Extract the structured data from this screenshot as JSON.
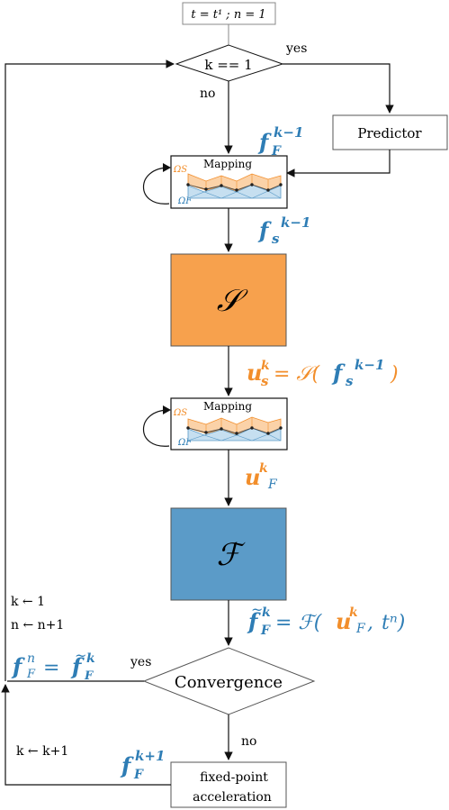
{
  "colors": {
    "orange": "#f7a14d",
    "orange_text": "#f28e2b",
    "blue": "#5b9bc8",
    "blue_text": "#2e7db5",
    "stroke": "#222222",
    "light_orange": "#fbd2a8",
    "light_blue": "#c6dff0"
  },
  "init": {
    "text": "t = t¹ ; n = 1"
  },
  "decision_k": {
    "text": "k == 1",
    "yes": "yes",
    "no": "no"
  },
  "predictor": {
    "label": "Predictor"
  },
  "mapping": {
    "title": "Mapping",
    "omega_s": "ΩS",
    "omega_f": "ΩF"
  },
  "solid": {
    "symbol": "𝒮"
  },
  "fluid": {
    "symbol": "ℱ"
  },
  "labels": {
    "fF_km1": "f",
    "fF_km1_sub": "F",
    "fF_km1_sup": "k−1",
    "fs_km1": "f",
    "fs_km1_sub": "s",
    "fs_km1_sup": "k−1",
    "us_eq": "= 𝒮(",
    "ukF": "u",
    "ftilde_eq": "= ℱ(",
    "tn": "tⁿ)",
    "conv_eq": "= "
  },
  "convergence": {
    "label": "Convergence",
    "yes": "yes",
    "no": "no"
  },
  "reset_k": "k ← 1",
  "incr_n": "n ← n+1",
  "incr_k": "k ← k+1",
  "fixed_point": {
    "line1": "fixed-point",
    "line2": "acceleration"
  }
}
